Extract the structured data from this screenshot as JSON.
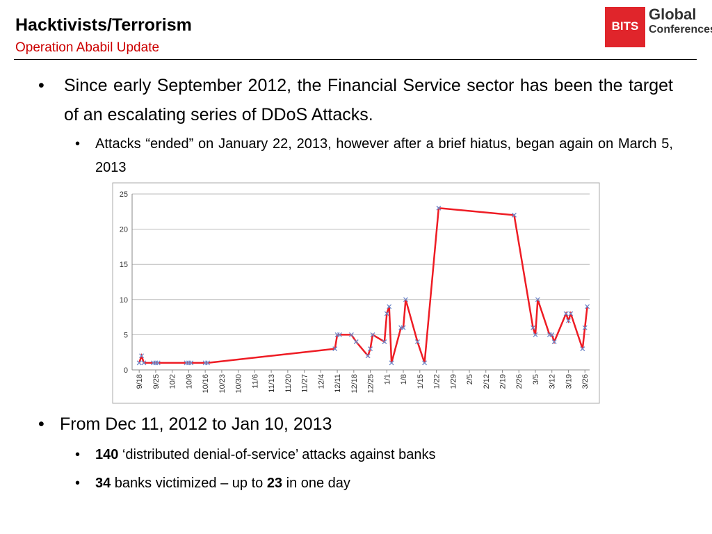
{
  "header": {
    "title": "Hacktivists/Terrorism",
    "subtitle": "Operation Ababil Update",
    "logo": {
      "mark": "BITS",
      "line1": "Global",
      "line2": "Conferences"
    }
  },
  "bullets_top": [
    {
      "text": "Since early September 2012, the Financial Service sector has been the target of an escalating series of DDoS Attacks.",
      "sub": [
        "Attacks “ended” on January 22, 2013, however after a brief hiatus, began again on March 5, 2013"
      ]
    }
  ],
  "bullets_bottom": {
    "text": "From Dec 11, 2012 to Jan 10, 2013",
    "sub": [
      [
        {
          "text": "140",
          "bold": true
        },
        {
          "text": " ‘distributed denial-of-service’ attacks against banks",
          "bold": false
        }
      ],
      [
        {
          "text": "34",
          "bold": true
        },
        {
          "text": " banks victimized – up to ",
          "bold": false
        },
        {
          "text": "23",
          "bold": true
        },
        {
          "text": " in one day",
          "bold": false
        }
      ]
    ]
  },
  "chart_data": {
    "type": "line",
    "x": [
      "9/18",
      "9/19",
      "9/20",
      "9/24",
      "9/25",
      "9/26",
      "10/8",
      "10/9",
      "10/10",
      "10/16",
      "10/17",
      "12/10",
      "12/11",
      "12/12",
      "12/17",
      "12/19",
      "12/24",
      "12/25",
      "12/26",
      "12/31",
      "1/1",
      "1/2",
      "1/3",
      "1/7",
      "1/8",
      "1/9",
      "1/14",
      "1/17",
      "1/23",
      "2/24",
      "3/4",
      "3/5",
      "3/6",
      "3/11",
      "3/12",
      "3/13",
      "3/18",
      "3/19",
      "3/20",
      "3/25",
      "3/26",
      "3/27"
    ],
    "series": [
      {
        "name": "Attacks",
        "color": "#ee1c24",
        "marker_color": "#7088c8",
        "values": [
          1,
          2,
          1,
          1,
          1,
          1,
          1,
          1,
          1,
          1,
          1,
          3,
          5,
          5,
          5,
          4,
          2,
          3,
          5,
          4,
          8,
          9,
          1,
          6,
          6,
          10,
          4,
          1,
          23,
          22,
          6,
          5,
          10,
          5,
          5,
          4,
          8,
          7,
          8,
          3,
          6,
          9
        ]
      }
    ],
    "xlim": [
      "9/15",
      "3/28"
    ],
    "xticks": [
      "9/18",
      "9/25",
      "10/2",
      "10/9",
      "10/16",
      "10/23",
      "10/30",
      "11/6",
      "11/13",
      "11/20",
      "11/27",
      "12/4",
      "12/11",
      "12/18",
      "12/25",
      "1/1",
      "1/8",
      "1/15",
      "1/22",
      "1/29",
      "2/5",
      "2/12",
      "2/19",
      "2/26",
      "3/5",
      "3/12",
      "3/19",
      "3/26"
    ],
    "ylim": [
      0,
      25
    ],
    "yticks": [
      0,
      5,
      10,
      15,
      20,
      25
    ],
    "grid": true
  }
}
